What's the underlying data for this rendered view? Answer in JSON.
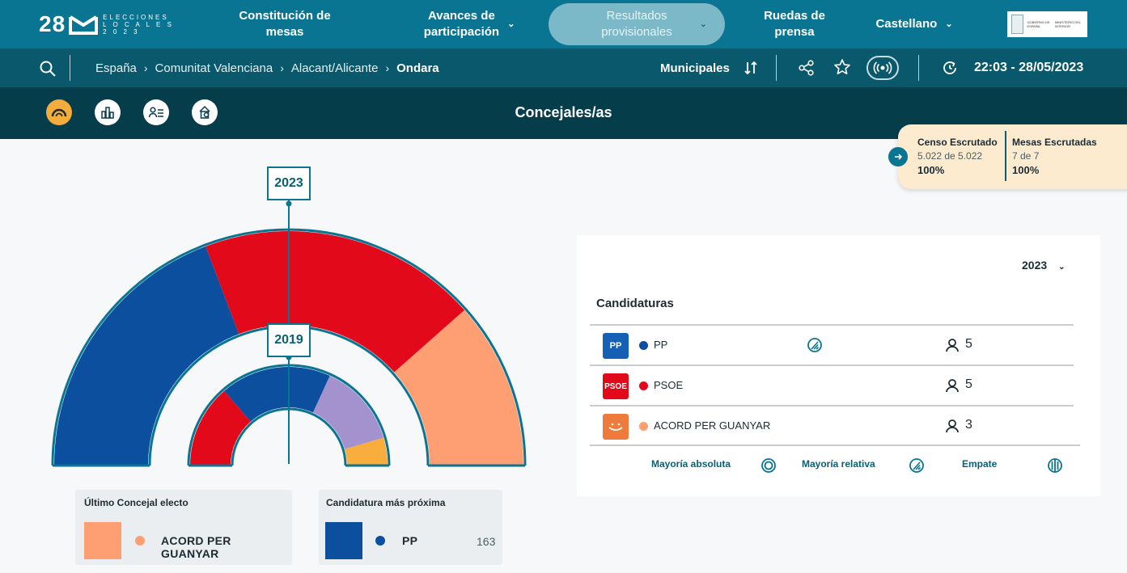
{
  "header": {
    "logo": {
      "number": "28",
      "line1": "ELECCIONES",
      "line2": "L O C A L E S",
      "line3": "2 0 2 3"
    },
    "nav": [
      {
        "label": "Constitución de mesas"
      },
      {
        "label_line1": "Avances de",
        "label_line2": "participación"
      },
      {
        "label_line1": "Resultados",
        "label_line2": "provisionales"
      },
      {
        "label": "Ruedas de prensa"
      },
      {
        "label": "Castellano"
      }
    ],
    "ministry": {
      "left": "GOBIERNO DE ESPAÑA",
      "right": "MINISTERIO DEL INTERIOR"
    }
  },
  "subbar": {
    "breadcrumb": [
      "España",
      "Comunitat Valenciana",
      "Alacant/Alicante",
      "Ondara"
    ],
    "election_type": "Municipales",
    "datetime": "22:03 - 28/05/2023"
  },
  "section": {
    "title": "Concejales/as",
    "views": [
      "hemicycle-icon",
      "bar-chart-icon",
      "candidate-list-icon",
      "town-hall-icon"
    ]
  },
  "scrutiny": {
    "census_label": "Censo Escrutado",
    "census_value": "5.022 de 5.022",
    "census_pct": "100%",
    "tables_label": "Mesas Escrutadas",
    "tables_value": "7 de 7",
    "tables_pct": "100%"
  },
  "hemicycle": {
    "outer_year": "2023",
    "inner_year": "2019",
    "outer": [
      {
        "party": "PP",
        "seats": 5,
        "color": "#0b4f9e"
      },
      {
        "party": "PSOE",
        "seats": 5,
        "color": "#e20a1a"
      },
      {
        "party": "ACORD PER GUANYAR",
        "seats": 3,
        "color": "#fd9f73"
      }
    ],
    "inner": [
      {
        "seats": 3,
        "color": "#e20a1a"
      },
      {
        "seats": 4,
        "color": "#0b4f9e"
      },
      {
        "seats": 3,
        "color": "#a392cd"
      },
      {
        "seats": 1,
        "color": "#f8ad3c"
      }
    ]
  },
  "last_elected": {
    "title": "Último Concejal electo",
    "party": "ACORD PER GUANYAR",
    "color": "#fd9f73"
  },
  "next_candidate": {
    "title": "Candidatura más próxima",
    "party": "PP",
    "votes": "163",
    "color": "#0b4f9e"
  },
  "results": {
    "year": "2023",
    "title": "Candidaturas",
    "rows": [
      {
        "logo": "PP",
        "name": "PP",
        "color": "#0b4f9e",
        "logo_bg": "#1560b5",
        "seats": "5",
        "majority": "relative"
      },
      {
        "logo": "PSOE",
        "name": "PSOE",
        "color": "#e20a1a",
        "logo_bg": "#e20a1a",
        "seats": "5",
        "majority": ""
      },
      {
        "logo": "",
        "name": "ACORD PER GUANYAR",
        "color": "#fd9f73",
        "logo_bg": "#ee7a3c",
        "seats": "3",
        "majority": ""
      }
    ],
    "legend": [
      {
        "label": "Mayoría absoluta",
        "icon": "absolute-majority-icon"
      },
      {
        "label": "Mayoría relativa",
        "icon": "relative-majority-icon"
      },
      {
        "label": "Empate",
        "icon": "tie-icon"
      }
    ]
  }
}
